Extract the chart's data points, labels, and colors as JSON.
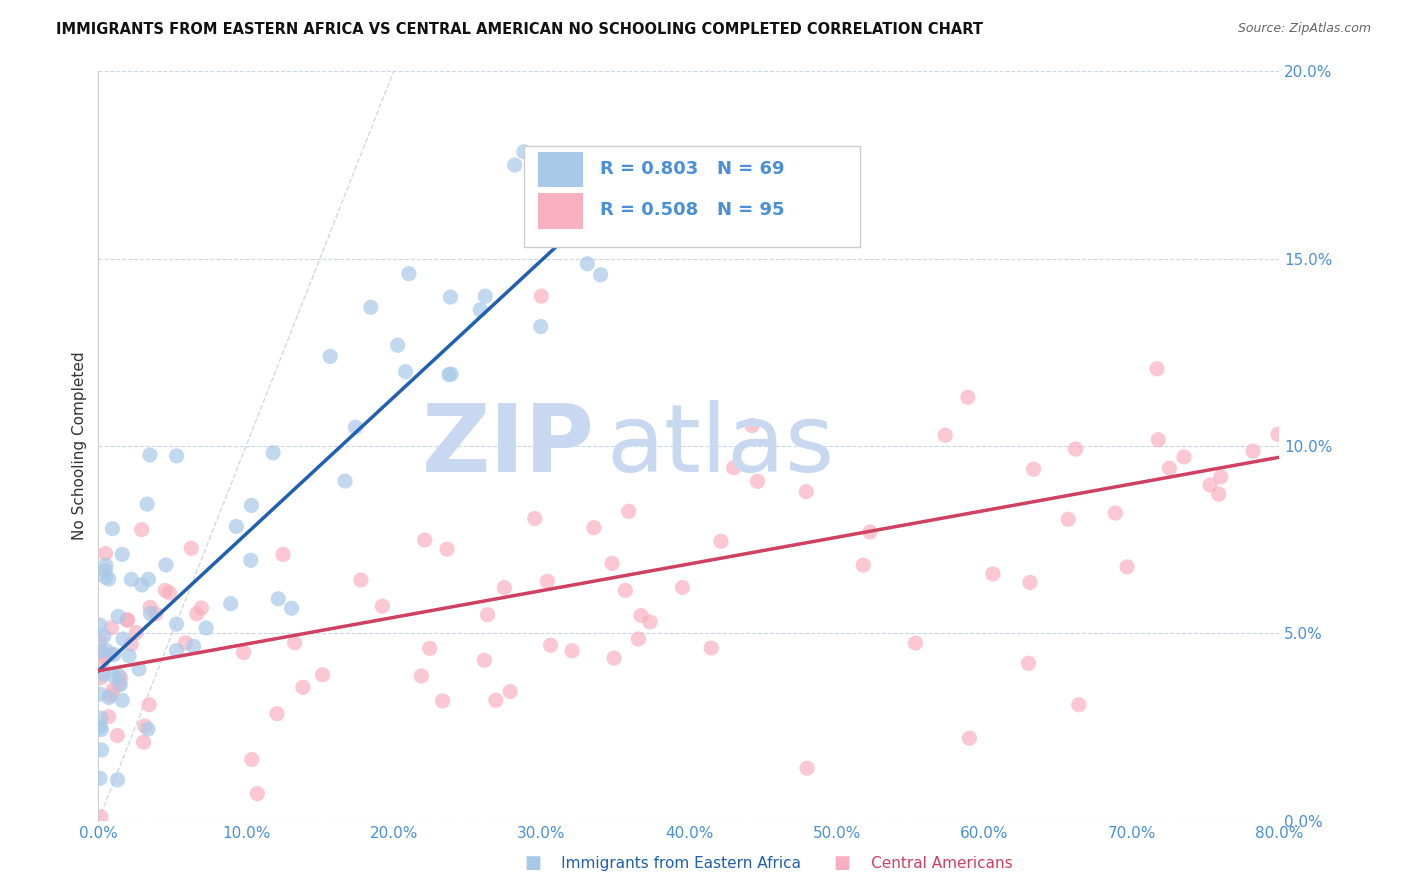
{
  "title": "IMMIGRANTS FROM EASTERN AFRICA VS CENTRAL AMERICAN NO SCHOOLING COMPLETED CORRELATION CHART",
  "source": "Source: ZipAtlas.com",
  "ylabel": "No Schooling Completed",
  "legend_labels": [
    "Immigrants from Eastern Africa",
    "Central Americans"
  ],
  "blue_R": "R = 0.803",
  "blue_N": "N = 69",
  "pink_R": "R = 0.508",
  "pink_N": "N = 95",
  "blue_dot_color": "#a8c8e8",
  "pink_dot_color": "#f8b0c0",
  "blue_line_color": "#2060b0",
  "pink_line_color": "#d04060",
  "axis_tick_color": "#4a90d9",
  "watermark_zip_color": "#c8d8f0",
  "watermark_atlas_color": "#c8d8f0",
  "background_color": "#ffffff",
  "grid_color": "#c8d8e8",
  "xlim": [
    0.0,
    0.8
  ],
  "ylim": [
    0.0,
    0.2
  ],
  "xticks": [
    0.0,
    0.1,
    0.2,
    0.3,
    0.4,
    0.5,
    0.6,
    0.7,
    0.8
  ],
  "yticks": [
    0.0,
    0.05,
    0.1,
    0.15,
    0.2
  ],
  "blue_line_x0": 0.0,
  "blue_line_y0": 0.04,
  "blue_line_x1": 0.315,
  "blue_line_y1": 0.155,
  "pink_line_x0": 0.0,
  "pink_line_y0": 0.04,
  "pink_line_x1": 0.8,
  "pink_line_y1": 0.097
}
